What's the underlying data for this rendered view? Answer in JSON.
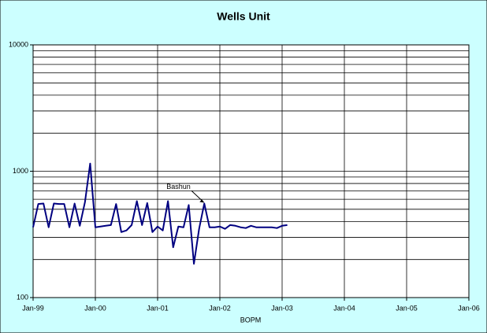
{
  "chart_data": {
    "type": "line",
    "title": "Wells Unit",
    "x_label": "BOPM",
    "x": [
      "Jan-99",
      "Feb-99",
      "Mar-99",
      "Apr-99",
      "May-99",
      "Jun-99",
      "Jul-99",
      "Aug-99",
      "Sep-99",
      "Oct-99",
      "Nov-99",
      "Dec-99",
      "Jan-00",
      "Feb-00",
      "Mar-00",
      "Apr-00",
      "May-00",
      "Jun-00",
      "Jul-00",
      "Aug-00",
      "Sep-00",
      "Oct-00",
      "Nov-00",
      "Dec-00",
      "Jan-01",
      "Feb-01",
      "Mar-01",
      "Apr-01",
      "May-01",
      "Jun-01",
      "Jul-01",
      "Aug-01",
      "Sep-01",
      "Oct-01",
      "Nov-01",
      "Dec-01",
      "Jan-02",
      "Feb-02",
      "Mar-02",
      "Apr-02",
      "May-02",
      "Jun-02",
      "Jul-02",
      "Aug-02",
      "Sep-02",
      "Oct-02",
      "Nov-02",
      "Dec-02",
      "Jan-03",
      "Feb-03"
    ],
    "values": [
      360,
      550,
      555,
      360,
      555,
      550,
      550,
      360,
      555,
      370,
      570,
      1150,
      360,
      365,
      370,
      375,
      550,
      330,
      340,
      375,
      580,
      375,
      560,
      330,
      365,
      340,
      580,
      250,
      365,
      360,
      540,
      185,
      350,
      555,
      360,
      360,
      365,
      350,
      375,
      370,
      360,
      355,
      370,
      360,
      360,
      360,
      360,
      355,
      370,
      375
    ],
    "color": "#000080",
    "xlim": [
      "Jan-99",
      "Jan-06"
    ],
    "xticks": [
      "Jan-99",
      "Jan-00",
      "Jan-01",
      "Jan-02",
      "Jan-03",
      "Jan-04",
      "Jan-05",
      "Jan-06"
    ],
    "ylim": [
      100,
      10000
    ],
    "log_y": true,
    "yticks": [
      100,
      1000,
      10000
    ],
    "y_minor_grid": [
      200,
      300,
      400,
      500,
      600,
      700,
      800,
      900,
      2000,
      3000,
      4000,
      5000,
      6000,
      7000,
      8000,
      9000
    ],
    "grid": true,
    "annotation": {
      "text": "Bashun",
      "x": "Oct-01",
      "value": 555
    }
  }
}
